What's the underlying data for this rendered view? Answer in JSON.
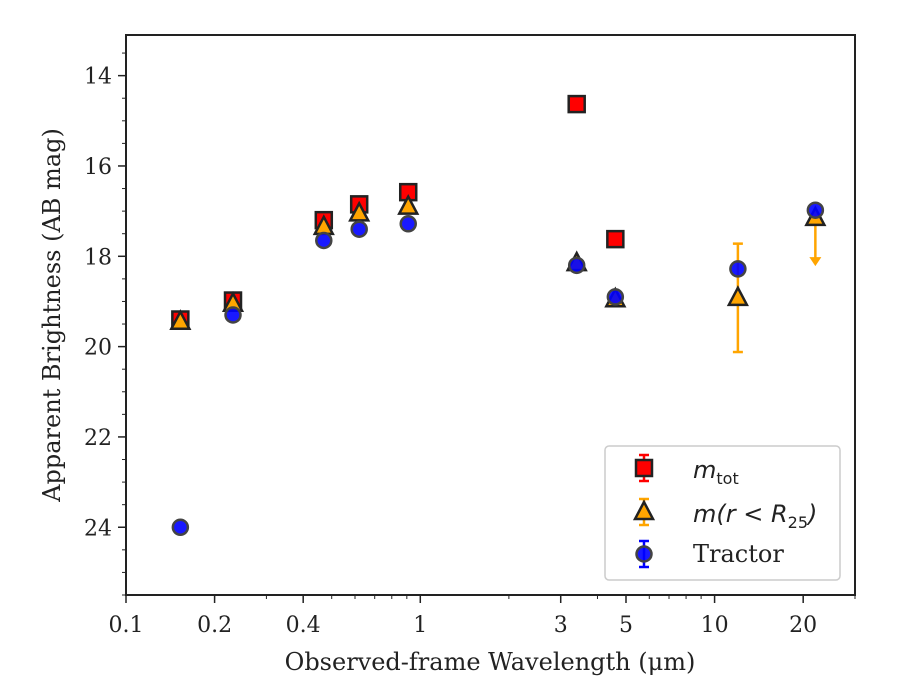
{
  "chart_data": {
    "type": "scatter",
    "xlabel_prefix": "Observed-frame Wavelength (",
    "xlabel_unit": "μm",
    "xlabel_suffix": ")",
    "ylabel": "Apparent Brightness (AB mag)",
    "xscale": "log",
    "xlim": [
      0.1,
      30
    ],
    "ylim": [
      25.5,
      13.1
    ],
    "y_inverted": true,
    "x_ticks": [
      0.1,
      0.2,
      0.4,
      1,
      3,
      5,
      10,
      20
    ],
    "x_tick_labels": [
      "0.1",
      "0.2",
      "0.4",
      "1",
      "3",
      "5",
      "10",
      "20"
    ],
    "y_ticks": [
      14,
      16,
      18,
      20,
      22,
      24
    ],
    "y_tick_labels": [
      "14",
      "16",
      "18",
      "20",
      "22",
      "24"
    ],
    "legend_position": "lower right",
    "colors": {
      "m_tot": "#ff0000",
      "m_r25": "#ffa500",
      "tractor": "#0000ff",
      "edge": "#222222"
    },
    "series": [
      {
        "id": "m_tot",
        "legend": {
          "base": "m",
          "sub": "tot"
        },
        "marker": "square",
        "points": [
          {
            "x": 0.153,
            "y": 19.4
          },
          {
            "x": 0.231,
            "y": 18.98
          },
          {
            "x": 0.47,
            "y": 17.2
          },
          {
            "x": 0.62,
            "y": 16.85
          },
          {
            "x": 0.91,
            "y": 16.58
          },
          {
            "x": 3.4,
            "y": 14.63
          },
          {
            "x": 4.6,
            "y": 17.62
          }
        ]
      },
      {
        "id": "m_r25",
        "legend": {
          "text": "m(r < R",
          "sub": "25",
          "tail": ")"
        },
        "marker": "triangle",
        "points": [
          {
            "x": 0.153,
            "y": 19.45
          },
          {
            "x": 0.231,
            "y": 19.05
          },
          {
            "x": 0.47,
            "y": 17.35
          },
          {
            "x": 0.62,
            "y": 17.05
          },
          {
            "x": 0.91,
            "y": 16.9
          },
          {
            "x": 3.4,
            "y": 18.15
          },
          {
            "x": 4.6,
            "y": 18.95
          },
          {
            "x": 12.0,
            "y": 18.92,
            "err_low": 1.2,
            "err_high": 1.2
          },
          {
            "x": 22.0,
            "y": 17.15,
            "upper_limit": true
          }
        ]
      },
      {
        "id": "tractor",
        "legend": {
          "text": "Tractor"
        },
        "marker": "circle",
        "points": [
          {
            "x": 0.153,
            "y": 24.0
          },
          {
            "x": 0.231,
            "y": 19.3
          },
          {
            "x": 0.47,
            "y": 17.65
          },
          {
            "x": 0.62,
            "y": 17.4
          },
          {
            "x": 0.91,
            "y": 17.28
          },
          {
            "x": 3.4,
            "y": 18.2
          },
          {
            "x": 4.6,
            "y": 18.9
          },
          {
            "x": 12.0,
            "y": 18.28
          },
          {
            "x": 22.0,
            "y": 16.98
          }
        ]
      }
    ]
  }
}
